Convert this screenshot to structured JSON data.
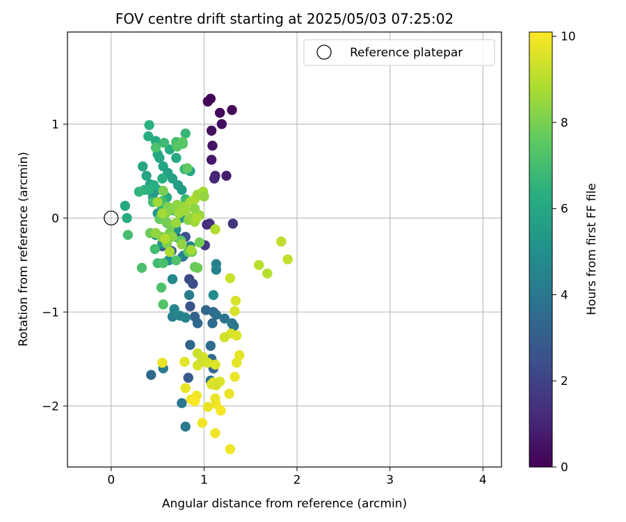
{
  "chart_data": {
    "type": "scatter",
    "title": "FOV centre drift starting at 2025/05/03 07:25:02",
    "xlabel": "Angular distance from reference (arcmin)",
    "ylabel": "Rotation from reference (arcmin)",
    "xlim": [
      -0.47,
      4.2
    ],
    "ylim": [
      -2.65,
      1.98
    ],
    "xticks": [
      0,
      1,
      2,
      3,
      4
    ],
    "xtick_labels": [
      "0",
      "1",
      "2",
      "3",
      "4"
    ],
    "yticks": [
      -2,
      -1,
      0,
      1
    ],
    "ytick_labels": [
      "−2",
      "−1",
      "0",
      "1"
    ],
    "grid": true,
    "legend": {
      "position": "top-right",
      "entries": [
        {
          "label": "Reference platepar",
          "marker": "open-circle"
        }
      ]
    },
    "reference_point": {
      "x": 0,
      "y": 0
    },
    "colorbar": {
      "label": "Hours from first FF file",
      "range": [
        0,
        10.1
      ],
      "ticks": [
        0,
        2,
        4,
        6,
        8,
        10
      ],
      "tick_labels": [
        "0",
        "2",
        "4",
        "6",
        "8",
        "10"
      ],
      "colormap": "viridis"
    },
    "points": [
      {
        "x": 1.07,
        "y": 1.27,
        "c": 0.1
      },
      {
        "x": 1.04,
        "y": 1.24,
        "c": 0.1
      },
      {
        "x": 1.3,
        "y": 1.15,
        "c": 0.2
      },
      {
        "x": 1.17,
        "y": 1.12,
        "c": 0.2
      },
      {
        "x": 1.19,
        "y": 1.0,
        "c": 0.3
      },
      {
        "x": 1.08,
        "y": 0.93,
        "c": 0.4
      },
      {
        "x": 1.09,
        "y": 0.77,
        "c": 0.5
      },
      {
        "x": 1.08,
        "y": 0.62,
        "c": 0.7
      },
      {
        "x": 1.24,
        "y": 0.45,
        "c": 0.8
      },
      {
        "x": 1.12,
        "y": 0.45,
        "c": 1.0
      },
      {
        "x": 1.11,
        "y": 0.42,
        "c": 1.1
      },
      {
        "x": 1.03,
        "y": -0.07,
        "c": 1.3
      },
      {
        "x": 1.06,
        "y": -0.06,
        "c": 1.4
      },
      {
        "x": 1.31,
        "y": -0.06,
        "c": 1.5
      },
      {
        "x": 1.01,
        "y": -0.29,
        "c": 1.7
      },
      {
        "x": 0.77,
        "y": -0.41,
        "c": 2.0
      },
      {
        "x": 0.84,
        "y": -0.65,
        "c": 2.2
      },
      {
        "x": 0.88,
        "y": -0.7,
        "c": 2.4
      },
      {
        "x": 0.85,
        "y": -0.94,
        "c": 2.6
      },
      {
        "x": 0.8,
        "y": -0.2,
        "c": 2.5
      },
      {
        "x": 0.83,
        "y": -1.7,
        "c": 2.8
      },
      {
        "x": 0.55,
        "y": -0.3,
        "c": 2.9
      },
      {
        "x": 0.65,
        "y": -0.35,
        "c": 3.0
      },
      {
        "x": 0.7,
        "y": -0.2,
        "c": 3.1
      },
      {
        "x": 0.9,
        "y": -1.05,
        "c": 3.2
      },
      {
        "x": 1.02,
        "y": -0.98,
        "c": 3.3
      },
      {
        "x": 0.93,
        "y": -1.12,
        "c": 3.4
      },
      {
        "x": 1.09,
        "y": -1.12,
        "c": 3.5
      },
      {
        "x": 1.1,
        "y": -1.0,
        "c": 3.6
      },
      {
        "x": 1.13,
        "y": -1.03,
        "c": 3.7
      },
      {
        "x": 1.22,
        "y": -1.07,
        "c": 3.8
      },
      {
        "x": 1.3,
        "y": -1.12,
        "c": 3.9
      },
      {
        "x": 1.32,
        "y": -1.15,
        "c": 4.0
      },
      {
        "x": 0.85,
        "y": -1.35,
        "c": 3.3
      },
      {
        "x": 0.43,
        "y": -1.67,
        "c": 3.4
      },
      {
        "x": 1.07,
        "y": -1.36,
        "c": 3.6
      },
      {
        "x": 1.08,
        "y": -1.5,
        "c": 3.5
      },
      {
        "x": 1.1,
        "y": -1.6,
        "c": 3.4
      },
      {
        "x": 1.07,
        "y": -1.73,
        "c": 3.7
      },
      {
        "x": 0.76,
        "y": -1.97,
        "c": 4.0
      },
      {
        "x": 0.8,
        "y": -2.22,
        "c": 4.1
      },
      {
        "x": 0.56,
        "y": -1.6,
        "c": 4.2
      },
      {
        "x": 0.66,
        "y": -1.05,
        "c": 4.3
      },
      {
        "x": 0.74,
        "y": -1.04,
        "c": 4.4
      },
      {
        "x": 0.8,
        "y": -1.06,
        "c": 4.5
      },
      {
        "x": 0.68,
        "y": -0.97,
        "c": 4.6
      },
      {
        "x": 0.66,
        "y": -0.65,
        "c": 4.7
      },
      {
        "x": 0.84,
        "y": -0.82,
        "c": 4.2
      },
      {
        "x": 0.78,
        "y": -0.4,
        "c": 4.5
      },
      {
        "x": 0.85,
        "y": -0.3,
        "c": 4.6
      },
      {
        "x": 1.13,
        "y": -0.49,
        "c": 4.4
      },
      {
        "x": 1.13,
        "y": -0.55,
        "c": 4.5
      },
      {
        "x": 1.1,
        "y": -0.82,
        "c": 4.9
      },
      {
        "x": 0.62,
        "y": -0.45,
        "c": 5.0
      },
      {
        "x": 0.55,
        "y": -0.27,
        "c": 5.2
      },
      {
        "x": 0.48,
        "y": -0.18,
        "c": 5.3
      },
      {
        "x": 0.7,
        "y": -0.12,
        "c": 5.1
      },
      {
        "x": 0.6,
        "y": -0.05,
        "c": 5.2
      },
      {
        "x": 0.75,
        "y": 0.0,
        "c": 5.3
      },
      {
        "x": 0.5,
        "y": 0.05,
        "c": 5.4
      },
      {
        "x": 0.45,
        "y": 0.22,
        "c": 5.5
      },
      {
        "x": 0.5,
        "y": 0.3,
        "c": 5.6
      },
      {
        "x": 0.42,
        "y": 0.36,
        "c": 5.8
      },
      {
        "x": 0.38,
        "y": 0.45,
        "c": 5.9
      },
      {
        "x": 0.34,
        "y": 0.55,
        "c": 6.0
      },
      {
        "x": 0.5,
        "y": 0.68,
        "c": 6.1
      },
      {
        "x": 0.48,
        "y": 0.82,
        "c": 6.2
      },
      {
        "x": 0.4,
        "y": 0.87,
        "c": 6.3
      },
      {
        "x": 0.41,
        "y": 0.99,
        "c": 6.4
      },
      {
        "x": 0.63,
        "y": 0.73,
        "c": 6.2
      },
      {
        "x": 0.7,
        "y": 0.64,
        "c": 6.1
      },
      {
        "x": 0.52,
        "y": 0.64,
        "c": 6.0
      },
      {
        "x": 0.56,
        "y": 0.55,
        "c": 5.9
      },
      {
        "x": 0.61,
        "y": 0.48,
        "c": 5.8
      },
      {
        "x": 0.66,
        "y": 0.42,
        "c": 5.7
      },
      {
        "x": 0.72,
        "y": 0.35,
        "c": 5.6
      },
      {
        "x": 0.76,
        "y": 0.3,
        "c": 5.5
      },
      {
        "x": 0.85,
        "y": 0.5,
        "c": 5.9
      },
      {
        "x": 0.79,
        "y": 0.52,
        "c": 6.6
      },
      {
        "x": 0.8,
        "y": 0.9,
        "c": 6.7
      },
      {
        "x": 0.57,
        "y": 0.8,
        "c": 6.8
      },
      {
        "x": 0.15,
        "y": 0.13,
        "c": 6.0
      },
      {
        "x": 0.17,
        "y": 0.0,
        "c": 6.2
      },
      {
        "x": 0.55,
        "y": 0.42,
        "c": 6.3
      },
      {
        "x": 0.6,
        "y": 0.22,
        "c": 6.1
      },
      {
        "x": 0.46,
        "y": 0.35,
        "c": 6.3
      },
      {
        "x": 0.4,
        "y": 0.3,
        "c": 6.4
      },
      {
        "x": 0.36,
        "y": 0.3,
        "c": 6.5
      },
      {
        "x": 0.3,
        "y": 0.28,
        "c": 6.6
      },
      {
        "x": 0.55,
        "y": 0.12,
        "c": 6.5
      },
      {
        "x": 0.68,
        "y": 0.08,
        "c": 6.7
      },
      {
        "x": 0.8,
        "y": 0.2,
        "c": 6.8
      },
      {
        "x": 0.55,
        "y": 0.18,
        "c": 6.9
      },
      {
        "x": 0.45,
        "y": 0.17,
        "c": 7.0
      },
      {
        "x": 0.7,
        "y": 0.81,
        "c": 7.1
      },
      {
        "x": 0.77,
        "y": 0.79,
        "c": 7.3
      },
      {
        "x": 0.77,
        "y": 0.81,
        "c": 7.5
      },
      {
        "x": 0.82,
        "y": 0.53,
        "c": 7.6
      },
      {
        "x": 0.71,
        "y": 0.76,
        "c": 7.4
      },
      {
        "x": 0.48,
        "y": 0.75,
        "c": 7.2
      },
      {
        "x": 0.18,
        "y": -0.18,
        "c": 7.0
      },
      {
        "x": 0.33,
        "y": -0.53,
        "c": 7.1
      },
      {
        "x": 0.54,
        "y": -0.74,
        "c": 7.2
      },
      {
        "x": 0.56,
        "y": -0.92,
        "c": 7.3
      },
      {
        "x": 0.47,
        "y": -0.33,
        "c": 7.0
      },
      {
        "x": 0.5,
        "y": -0.48,
        "c": 6.9
      },
      {
        "x": 0.56,
        "y": -0.48,
        "c": 7.1
      },
      {
        "x": 0.7,
        "y": -0.45,
        "c": 7.2
      },
      {
        "x": 0.9,
        "y": -0.52,
        "c": 7.7
      },
      {
        "x": 0.93,
        "y": -0.53,
        "c": 7.8
      },
      {
        "x": 0.95,
        "y": -0.26,
        "c": 7.9
      },
      {
        "x": 0.75,
        "y": -0.24,
        "c": 7.6
      },
      {
        "x": 0.83,
        "y": -0.36,
        "c": 7.5
      },
      {
        "x": 0.87,
        "y": -0.36,
        "c": 7.8
      },
      {
        "x": 0.52,
        "y": -0.01,
        "c": 7.7
      },
      {
        "x": 0.59,
        "y": -0.04,
        "c": 7.9
      },
      {
        "x": 0.63,
        "y": -0.16,
        "c": 8.0
      },
      {
        "x": 0.42,
        "y": -0.16,
        "c": 7.8
      },
      {
        "x": 0.6,
        "y": -0.27,
        "c": 8.1
      },
      {
        "x": 0.54,
        "y": -0.2,
        "c": 8.2
      },
      {
        "x": 0.56,
        "y": 0.29,
        "c": 8.0
      },
      {
        "x": 0.61,
        "y": 0.12,
        "c": 8.1
      },
      {
        "x": 0.66,
        "y": 0.1,
        "c": 8.2
      },
      {
        "x": 0.71,
        "y": 0.14,
        "c": 8.3
      },
      {
        "x": 0.74,
        "y": 0.1,
        "c": 8.4
      },
      {
        "x": 0.78,
        "y": 0.12,
        "c": 8.5
      },
      {
        "x": 0.8,
        "y": 0.08,
        "c": 8.6
      },
      {
        "x": 0.85,
        "y": 0.17,
        "c": 8.7
      },
      {
        "x": 0.9,
        "y": 0.2,
        "c": 8.8
      },
      {
        "x": 0.93,
        "y": 0.25,
        "c": 8.6
      },
      {
        "x": 0.95,
        "y": 0.03,
        "c": 8.5
      },
      {
        "x": 0.99,
        "y": 0.28,
        "c": 8.7
      },
      {
        "x": 1.0,
        "y": 0.23,
        "c": 8.4
      },
      {
        "x": 0.9,
        "y": 0.1,
        "c": 8.3
      },
      {
        "x": 0.83,
        "y": -0.02,
        "c": 8.2
      },
      {
        "x": 0.86,
        "y": 0.0,
        "c": 8.4
      },
      {
        "x": 0.9,
        "y": -0.04,
        "c": 8.6
      },
      {
        "x": 0.92,
        "y": 0.0,
        "c": 8.8
      },
      {
        "x": 0.64,
        "y": -0.08,
        "c": 8.0
      },
      {
        "x": 0.66,
        "y": -0.2,
        "c": 8.3
      },
      {
        "x": 0.7,
        "y": -0.05,
        "c": 8.5
      },
      {
        "x": 0.73,
        "y": 0.05,
        "c": 8.6
      },
      {
        "x": 0.76,
        "y": -0.28,
        "c": 8.4
      },
      {
        "x": 0.86,
        "y": -0.34,
        "c": 8.7
      },
      {
        "x": 0.6,
        "y": 0.06,
        "c": 8.2
      },
      {
        "x": 0.48,
        "y": -0.16,
        "c": 8.4
      },
      {
        "x": 1.12,
        "y": -0.12,
        "c": 8.9
      },
      {
        "x": 0.5,
        "y": 0.17,
        "c": 8.6
      },
      {
        "x": 0.55,
        "y": 0.05,
        "c": 8.7
      },
      {
        "x": 0.63,
        "y": -0.36,
        "c": 8.8
      },
      {
        "x": 0.58,
        "y": -0.22,
        "c": 8.9
      },
      {
        "x": 1.59,
        "y": -0.5,
        "c": 9.0
      },
      {
        "x": 1.68,
        "y": -0.59,
        "c": 9.0
      },
      {
        "x": 1.83,
        "y": -0.25,
        "c": 9.1
      },
      {
        "x": 1.9,
        "y": -0.44,
        "c": 9.2
      },
      {
        "x": 1.28,
        "y": -0.64,
        "c": 9.3
      },
      {
        "x": 1.34,
        "y": -0.88,
        "c": 9.5
      },
      {
        "x": 1.33,
        "y": -0.99,
        "c": 9.5
      },
      {
        "x": 1.29,
        "y": -1.23,
        "c": 9.5
      },
      {
        "x": 1.22,
        "y": -1.27,
        "c": 9.4
      },
      {
        "x": 1.35,
        "y": -1.25,
        "c": 9.6
      },
      {
        "x": 1.38,
        "y": -1.46,
        "c": 9.7
      },
      {
        "x": 1.35,
        "y": -1.54,
        "c": 9.7
      },
      {
        "x": 1.33,
        "y": -1.69,
        "c": 9.8
      },
      {
        "x": 1.27,
        "y": -1.87,
        "c": 9.8
      },
      {
        "x": 1.28,
        "y": -2.46,
        "c": 9.9
      },
      {
        "x": 1.12,
        "y": -2.29,
        "c": 9.9
      },
      {
        "x": 1.18,
        "y": -2.05,
        "c": 10.0
      },
      {
        "x": 1.13,
        "y": -1.98,
        "c": 9.9
      },
      {
        "x": 1.12,
        "y": -1.92,
        "c": 9.8
      },
      {
        "x": 1.04,
        "y": -2.01,
        "c": 9.8
      },
      {
        "x": 0.98,
        "y": -2.18,
        "c": 9.9
      },
      {
        "x": 1.1,
        "y": -1.75,
        "c": 9.7
      },
      {
        "x": 1.08,
        "y": -1.77,
        "c": 9.6
      },
      {
        "x": 1.17,
        "y": -1.74,
        "c": 9.6
      },
      {
        "x": 1.13,
        "y": -1.78,
        "c": 9.5
      },
      {
        "x": 0.93,
        "y": -1.57,
        "c": 9.5
      },
      {
        "x": 0.97,
        "y": -1.53,
        "c": 9.4
      },
      {
        "x": 1.04,
        "y": -1.54,
        "c": 9.5
      },
      {
        "x": 1.12,
        "y": -1.56,
        "c": 9.6
      },
      {
        "x": 0.93,
        "y": -1.44,
        "c": 9.3
      },
      {
        "x": 0.99,
        "y": -1.48,
        "c": 9.4
      },
      {
        "x": 0.55,
        "y": -1.54,
        "c": 9.8
      },
      {
        "x": 0.79,
        "y": -1.53,
        "c": 9.7
      },
      {
        "x": 0.8,
        "y": -1.81,
        "c": 9.8
      },
      {
        "x": 0.86,
        "y": -1.93,
        "c": 9.9
      },
      {
        "x": 0.92,
        "y": -1.89,
        "c": 9.9
      },
      {
        "x": 0.9,
        "y": -1.95,
        "c": 10.0
      }
    ]
  }
}
